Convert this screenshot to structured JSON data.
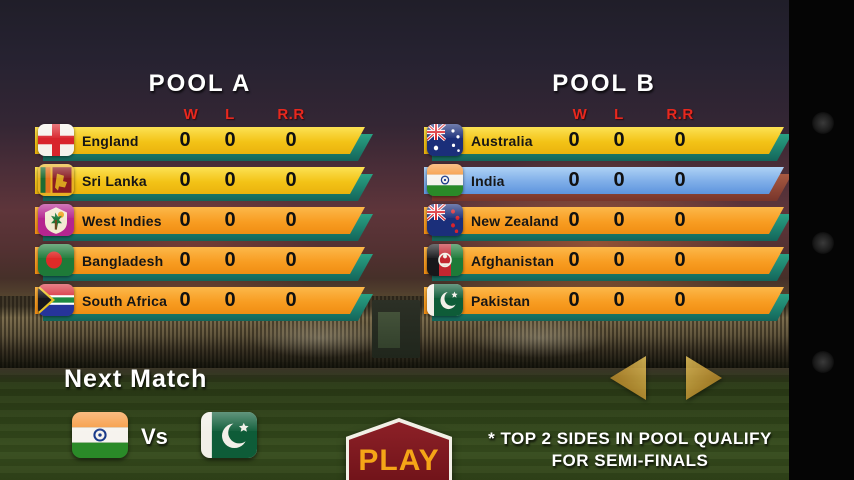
{
  "pools": [
    {
      "title": "POOL A",
      "columns": [
        "W",
        "L",
        "R.R"
      ],
      "teams": [
        {
          "name": "England",
          "flag": "england",
          "tier": "qualify",
          "w": "0",
          "l": "0",
          "rr": "0"
        },
        {
          "name": "Sri Lanka",
          "flag": "srilanka",
          "tier": "qualify",
          "w": "0",
          "l": "0",
          "rr": "0"
        },
        {
          "name": "West Indies",
          "flag": "westindies",
          "tier": "normal",
          "w": "0",
          "l": "0",
          "rr": "0"
        },
        {
          "name": "Bangladesh",
          "flag": "bangladesh",
          "tier": "normal",
          "w": "0",
          "l": "0",
          "rr": "0"
        },
        {
          "name": "South Africa",
          "flag": "southafrica",
          "tier": "normal",
          "w": "0",
          "l": "0",
          "rr": "0"
        }
      ]
    },
    {
      "title": "POOL B",
      "columns": [
        "W",
        "L",
        "R.R"
      ],
      "teams": [
        {
          "name": "Australia",
          "flag": "australia",
          "tier": "qualify",
          "w": "0",
          "l": "0",
          "rr": "0"
        },
        {
          "name": "India",
          "flag": "india",
          "tier": "player",
          "w": "0",
          "l": "0",
          "rr": "0"
        },
        {
          "name": "New Zealand",
          "flag": "newzealand",
          "tier": "normal",
          "w": "0",
          "l": "0",
          "rr": "0"
        },
        {
          "name": "Afghanistan",
          "flag": "afghanistan",
          "tier": "normal",
          "w": "0",
          "l": "0",
          "rr": "0"
        },
        {
          "name": "Pakistan",
          "flag": "pakistan",
          "tier": "normal",
          "w": "0",
          "l": "0",
          "rr": "0"
        }
      ]
    }
  ],
  "next_match": {
    "label": "Next Match",
    "team1": "India",
    "vs_label": "Vs",
    "team2": "Pakistan"
  },
  "play_button": {
    "label": "PLAY"
  },
  "footnote": {
    "line1": "* TOP 2 SIDES IN POOL QUALIFY",
    "line2": "FOR SEMI-FINALS"
  },
  "colors": {
    "pool_title": "#ffffff",
    "column_header": "#e8281e",
    "row_qualify": "#f3c317",
    "row_normal": "#f89d22",
    "row_player": "#7eade8",
    "row_shadow_teal": "#1f8a72",
    "row_shadow_player": "#9a4a38",
    "play_button_bg": "#7a1820",
    "play_button_text": "#f5a517",
    "arrow_gold": "#c29230"
  }
}
